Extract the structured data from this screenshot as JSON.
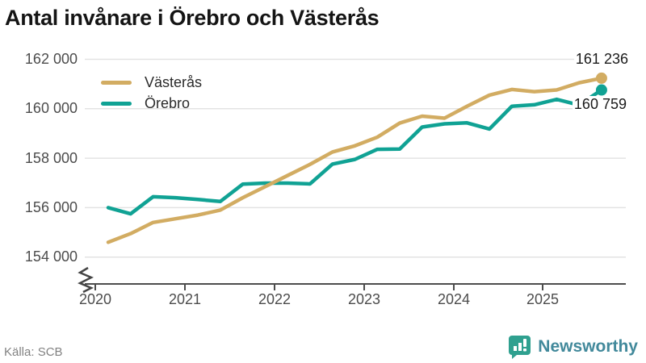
{
  "title": "Antal invånare i Örebro och Västerås",
  "source": "Källa: SCB",
  "logo": {
    "text": "Newsworthy",
    "icon": "bar-chart-speech-bubble-icon",
    "icon_color": "#2fa08f",
    "text_color": "#42899b"
  },
  "chart_data": {
    "type": "line",
    "title": "Antal invånare i Örebro och Västerås",
    "x_period": "quarterly 2020–2025",
    "grid": "horizontal",
    "legend_position": "top-left",
    "axis_break": true,
    "ylim": [
      153600,
      162300
    ],
    "xticks": [
      {
        "label": "2020"
      },
      {
        "label": "2021"
      },
      {
        "label": "2022"
      },
      {
        "label": "2023"
      },
      {
        "label": "2024"
      },
      {
        "label": "2025"
      }
    ],
    "yticks": [
      {
        "label": "162 000",
        "value": 162000
      },
      {
        "label": "160 000",
        "value": 160000
      },
      {
        "label": "158 000",
        "value": 158000
      },
      {
        "label": "156 000",
        "value": 156000
      },
      {
        "label": "154 000",
        "value": 154000
      }
    ],
    "series": [
      {
        "name": "Västerås",
        "color": "#d2ac62",
        "end_label": "161 236",
        "final_value": 161236,
        "values": [
          154600,
          154950,
          155400,
          155550,
          155700,
          155900,
          156400,
          156850,
          157300,
          157750,
          158250,
          158500,
          158850,
          159420,
          159700,
          159620,
          160100,
          160550,
          160780,
          160690,
          160760,
          161050,
          161236
        ]
      },
      {
        "name": "Örebro",
        "color": "#10a294",
        "end_label": "160 759",
        "final_value": 160759,
        "values": [
          156000,
          155750,
          156440,
          156400,
          156330,
          156250,
          156950,
          156990,
          156990,
          156960,
          157760,
          157950,
          158360,
          158370,
          159260,
          159390,
          159430,
          159180,
          160100,
          160160,
          160380,
          160150,
          160759
        ]
      }
    ]
  }
}
